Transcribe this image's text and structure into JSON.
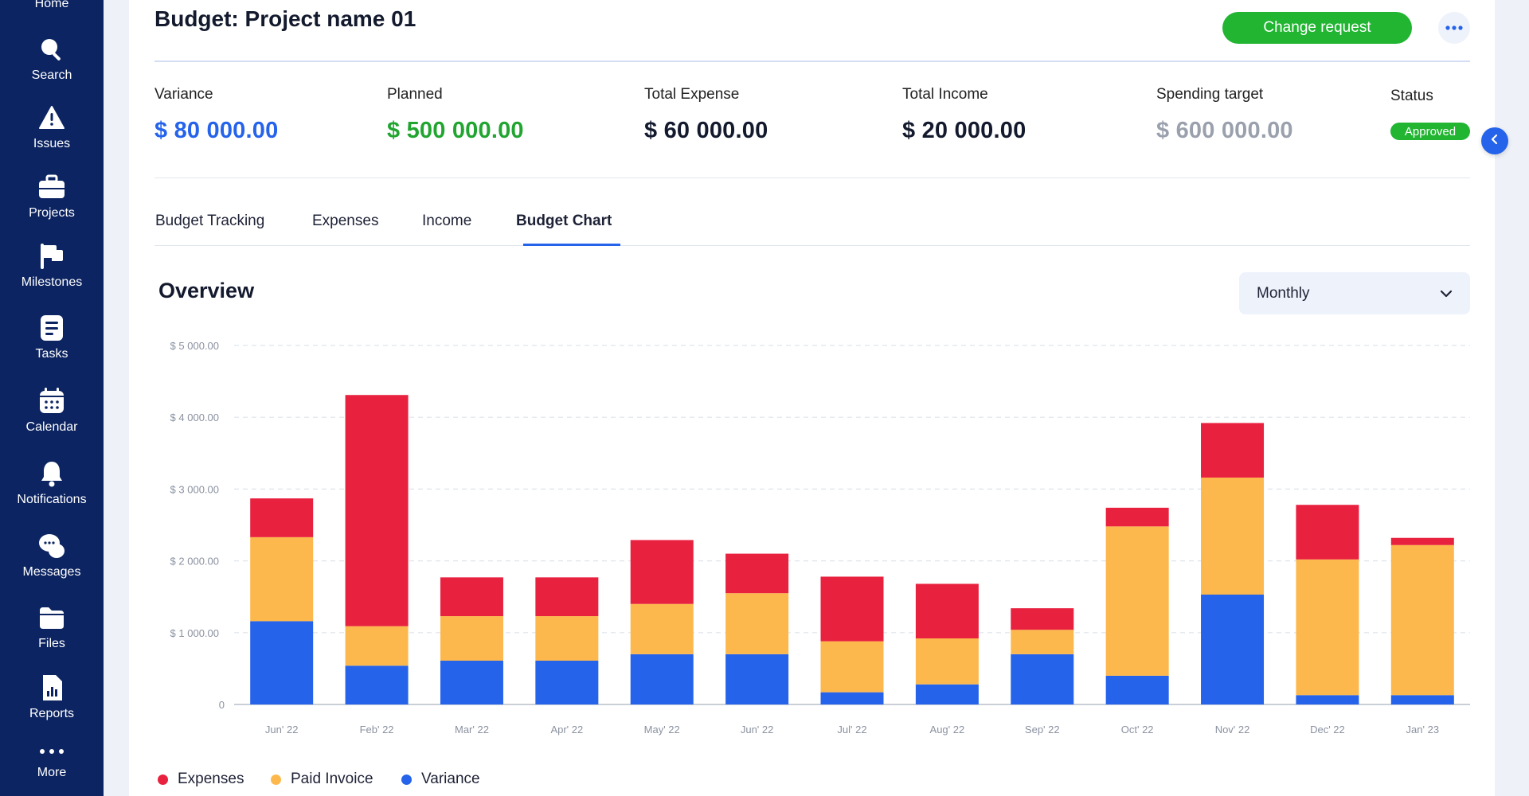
{
  "sidebar": {
    "items": [
      {
        "label": "Home",
        "icon": "home-icon"
      },
      {
        "label": "Search",
        "icon": "search-icon"
      },
      {
        "label": "Issues",
        "icon": "warning-icon"
      },
      {
        "label": "Projects",
        "icon": "briefcase-icon"
      },
      {
        "label": "Milestones",
        "icon": "flag-icon"
      },
      {
        "label": "Tasks",
        "icon": "tasks-icon"
      },
      {
        "label": "Calendar",
        "icon": "calendar-icon"
      },
      {
        "label": "Notifications",
        "icon": "bell-icon"
      },
      {
        "label": "Messages",
        "icon": "chat-icon"
      },
      {
        "label": "Files",
        "icon": "folder-icon"
      },
      {
        "label": "Reports",
        "icon": "report-icon"
      },
      {
        "label": "More",
        "icon": "more-dots-icon"
      }
    ]
  },
  "header": {
    "title": "Budget: Project name 01",
    "change_request_label": "Change request"
  },
  "metrics": [
    {
      "label": "Variance",
      "value": "$ 80 000.00",
      "color": "#2563eb"
    },
    {
      "label": "Planned",
      "value": "$ 500 000.00",
      "color": "#21a530"
    },
    {
      "label": "Total Expense",
      "value": "$ 60 000.00",
      "color": "#141a2e"
    },
    {
      "label": "Total Income",
      "value": "$ 20 000.00",
      "color": "#141a2e"
    },
    {
      "label": "Spending target",
      "value": "$ 600 000.00",
      "color": "#9aa1ad"
    }
  ],
  "status": {
    "label": "Status",
    "value": "Approved"
  },
  "tabs": [
    {
      "label": "Budget Tracking"
    },
    {
      "label": "Expenses"
    },
    {
      "label": "Income"
    },
    {
      "label": "Budget Chart",
      "active": true
    }
  ],
  "overview": {
    "title": "Overview",
    "period": "Monthly"
  },
  "colors": {
    "expenses": "#e8213f",
    "paid_invoice": "#fdb84d",
    "variance": "#2563eb",
    "sidebar": "#0c2461",
    "accent_green": "#21b532"
  },
  "chart_data": {
    "type": "bar",
    "stacked": true,
    "categories": [
      "Jun' 22",
      "Feb' 22",
      "Mar' 22",
      "Apr' 22",
      "May' 22",
      "Jun' 22",
      "Jul' 22",
      "Aug' 22",
      "Sep' 22",
      "Oct' 22",
      "Nov' 22",
      "Dec' 22",
      "Jan' 23"
    ],
    "series": [
      {
        "name": "Variance",
        "color": "#2563eb",
        "values": [
          1160,
          540,
          610,
          610,
          700,
          700,
          170,
          280,
          700,
          400,
          1530,
          130,
          130
        ]
      },
      {
        "name": "Paid Invoice",
        "color": "#fdb84d",
        "values": [
          1170,
          550,
          620,
          620,
          700,
          850,
          710,
          640,
          340,
          2080,
          1630,
          1890,
          2090
        ]
      },
      {
        "name": "Expenses",
        "color": "#e8213f",
        "values": [
          540,
          3220,
          540,
          540,
          890,
          550,
          900,
          760,
          300,
          260,
          760,
          760,
          100
        ]
      }
    ],
    "y_ticks": [
      "0",
      "$ 1 000.00",
      "$ 2 000.00",
      "$ 3 000.00",
      "$ 4 000.00",
      "$ 5 000.00"
    ],
    "ylim": [
      0,
      5000
    ],
    "grid": true,
    "legend_position": "bottom-left",
    "legend": [
      "Expenses",
      "Paid Invoice",
      "Variance"
    ]
  }
}
